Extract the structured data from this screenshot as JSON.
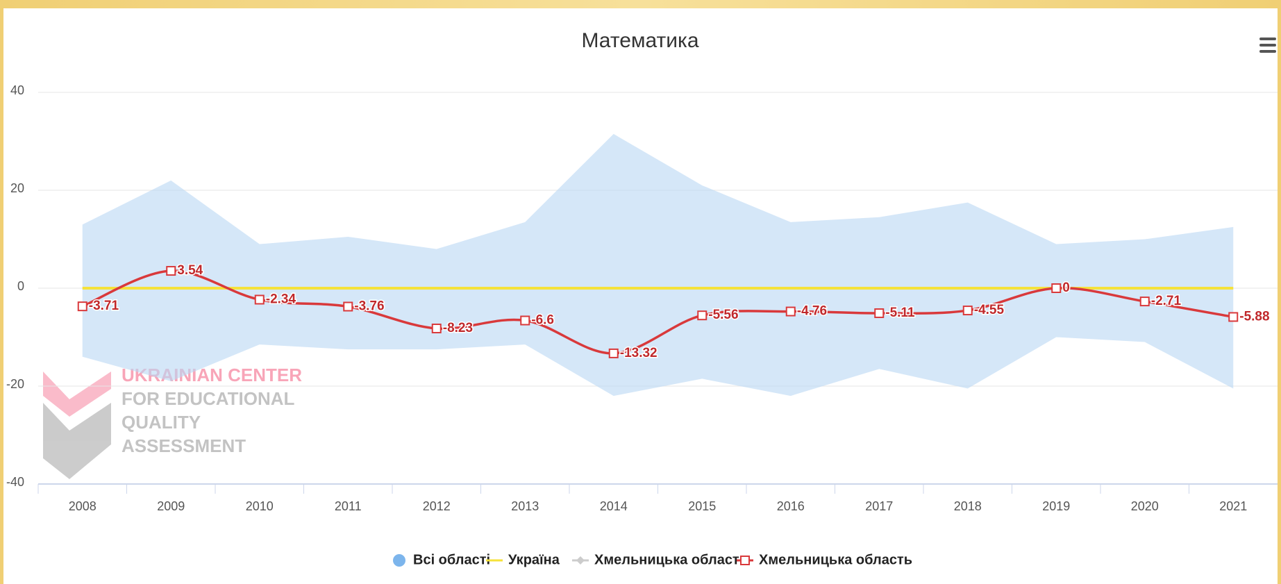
{
  "chart_data": {
    "type": "line",
    "title": "Математика",
    "categories": [
      "2008",
      "2009",
      "2010",
      "2011",
      "2012",
      "2013",
      "2014",
      "2015",
      "2016",
      "2017",
      "2018",
      "2019",
      "2020",
      "2021"
    ],
    "ylim": [
      -40,
      40
    ],
    "yticks": [
      -40,
      -20,
      0,
      20,
      40
    ],
    "grid": true,
    "series": [
      {
        "name": "Всі області",
        "type": "arearange",
        "color": "#b9d7f3",
        "low": [
          -14,
          -19,
          -11.5,
          -12.5,
          -12.5,
          -11.5,
          -22,
          -18.5,
          -22,
          -16.5,
          -20.5,
          -10,
          -11,
          -20.5
        ],
        "high": [
          13,
          22,
          9,
          10.5,
          8,
          13.5,
          31.5,
          21,
          13.5,
          14.5,
          17.5,
          9,
          10,
          12.5
        ]
      },
      {
        "name": "Україна",
        "color": "#f5e23a",
        "values": [
          0,
          0,
          0,
          0,
          0,
          0,
          0,
          0,
          0,
          0,
          0,
          0,
          0,
          0
        ]
      },
      {
        "name": "Хмельницька область",
        "color": "#cccccc",
        "visible": false
      },
      {
        "name": "Хмельницька область",
        "color": "#d9393b",
        "markers": true,
        "data_labels": true,
        "values": [
          -3.71,
          3.54,
          -2.34,
          -3.76,
          -8.23,
          -6.6,
          -13.32,
          -5.56,
          -4.76,
          -5.11,
          -4.55,
          0,
          -2.71,
          -5.88
        ]
      }
    ],
    "watermark": [
      "UKRAINIAN CENTER",
      "FOR EDUCATIONAL",
      "QUALITY",
      "ASSESSMENT"
    ]
  }
}
